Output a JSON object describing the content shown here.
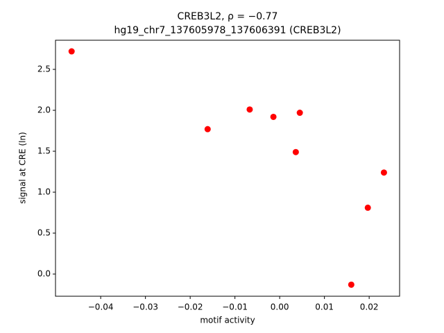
{
  "chart_data": {
    "type": "scatter",
    "title": "CREB3L2, ρ = −0.77",
    "subtitle": "hg19_chr7_137605978_137606391 (CREB3L2)",
    "x_label": "motif activity",
    "y_label": "signal at CRE (ln)",
    "color": "#ff0000",
    "x": [
      -0.0465,
      -0.0161,
      -0.0067,
      -0.0014,
      0.0036,
      0.0045,
      0.016,
      0.0197,
      0.0233
    ],
    "values": [
      2.72,
      1.77,
      2.01,
      1.92,
      1.49,
      1.97,
      -0.13,
      0.81,
      1.24
    ],
    "xlim": [
      -0.0501,
      0.0268
    ],
    "ylim": [
      -0.271,
      2.856
    ],
    "xticks": [
      {
        "value": -0.04,
        "label": "−0.04"
      },
      {
        "value": -0.03,
        "label": "−0.03"
      },
      {
        "value": -0.02,
        "label": "−0.02"
      },
      {
        "value": -0.01,
        "label": "−0.01"
      },
      {
        "value": 0,
        "label": "0.00"
      },
      0.01,
      0.02
    ],
    "yticks": [
      {
        "value": 0,
        "label": "0.0"
      },
      0.5,
      {
        "value": 1,
        "label": "1.0"
      },
      1.5,
      {
        "value": 2,
        "label": "2.0"
      },
      2.5
    ],
    "grid": false
  }
}
